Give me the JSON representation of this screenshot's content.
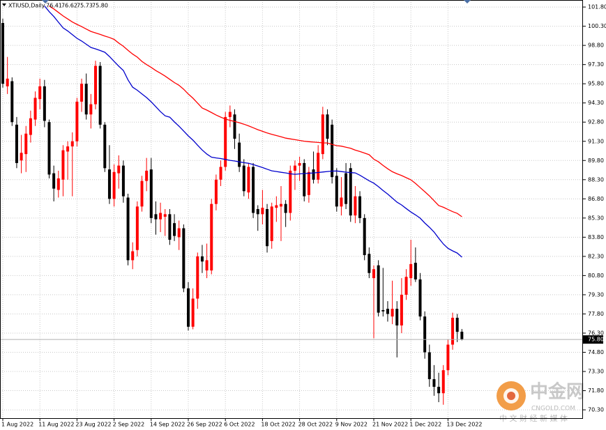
{
  "chart_data": {
    "type": "candlestick",
    "header": {
      "symbol": "XTIUSD,Daily",
      "ohlc": [
        "76.41",
        "76.62",
        "75.73",
        "75.80"
      ]
    },
    "categories": [
      "1 Aug 2022",
      null,
      null,
      null,
      null,
      null,
      null,
      null,
      "11 Aug 2022",
      null,
      null,
      null,
      null,
      null,
      null,
      null,
      "23 Aug 2022",
      null,
      null,
      null,
      null,
      null,
      null,
      null,
      "2 Sep 2022",
      null,
      null,
      null,
      null,
      null,
      null,
      null,
      "14 Sep 2022",
      null,
      null,
      null,
      null,
      null,
      null,
      null,
      "26 Sep 2022",
      null,
      null,
      null,
      null,
      null,
      null,
      null,
      "6 Oct 2022",
      null,
      null,
      null,
      null,
      null,
      null,
      null,
      "18 Oct 2022",
      null,
      null,
      null,
      null,
      null,
      null,
      null,
      "28 Oct 2022",
      null,
      null,
      null,
      null,
      null,
      null,
      null,
      "9 Nov 2022",
      null,
      null,
      null,
      null,
      null,
      null,
      null,
      "21 Nov 2022",
      null,
      null,
      null,
      null,
      null,
      null,
      null,
      "1 Dec 2022",
      null,
      null,
      null,
      null,
      null,
      null,
      null,
      "13 Dec 2022",
      null,
      null,
      null
    ],
    "open": [
      100.55,
      95.6,
      96.0,
      92.6,
      89.8,
      90.3,
      91.8,
      93.0,
      94.6,
      95.6,
      92.8,
      88.8,
      87.5,
      88.3,
      90.5,
      90.9,
      91.3,
      94.4,
      95.8,
      93.4,
      94.2,
      97.2,
      92.6,
      89.1,
      86.8,
      88.8,
      89.4,
      86.9,
      82.0,
      82.8,
      86.2,
      88.2,
      89.1,
      85.6,
      85.2,
      85.4,
      85.6,
      84.9,
      83.8,
      84.5,
      79.8,
      76.8,
      79.0,
      82.3,
      81.2,
      81.2,
      86.4,
      88.3,
      89.3,
      93.2,
      93.4,
      91.2,
      89.4,
      87.3,
      89.3,
      86.0,
      85.6,
      86.0,
      83.5,
      86.1,
      86.2,
      86.4,
      85.7,
      89.0,
      89.4,
      89.6,
      87.1,
      89.1,
      88.3,
      90.3,
      93.4,
      92.6,
      88.6,
      86.2,
      88.8,
      89.2,
      85.5,
      87.0,
      85.3,
      82.5,
      80.6,
      81.6,
      78.1,
      78.2,
      77.6,
      78.2,
      76.9,
      79.3,
      80.6,
      81.8,
      80.5,
      77.6,
      74.8,
      72.7,
      72.1,
      71.6,
      73.4,
      75.4,
      77.5,
      76.41
    ],
    "high": [
      100.9,
      97.9,
      96.3,
      93.2,
      91.8,
      92.5,
      93.7,
      95.2,
      96.2,
      96.1,
      93.0,
      89.4,
      89.0,
      91.0,
      91.3,
      92.0,
      94.7,
      96.2,
      96.6,
      95.0,
      97.6,
      97.5,
      92.8,
      91.0,
      89.5,
      90.2,
      89.8,
      87.2,
      83.4,
      86.6,
      88.6,
      90.0,
      90.0,
      86.6,
      86.5,
      86.0,
      86.0,
      85.6,
      85.1,
      84.8,
      80.3,
      79.8,
      82.6,
      83.2,
      83.3,
      86.8,
      88.7,
      89.8,
      93.6,
      94.1,
      93.8,
      91.9,
      89.9,
      89.6,
      89.6,
      86.3,
      87.5,
      86.4,
      86.5,
      87.0,
      87.8,
      86.7,
      89.4,
      89.8,
      90.1,
      89.9,
      89.3,
      90.5,
      91.0,
      94.0,
      93.8,
      93.0,
      89.2,
      88.5,
      89.6,
      89.6,
      87.8,
      87.4,
      85.6,
      83.0,
      81.6,
      82.0,
      81.4,
      78.8,
      80.4,
      78.8,
      80.6,
      81.3,
      83.6,
      83.0,
      81.0,
      78.0,
      75.4,
      73.8,
      73.2,
      73.8,
      75.8,
      77.9,
      77.8,
      76.62
    ],
    "low": [
      95.5,
      95.0,
      92.5,
      89.2,
      88.8,
      88.9,
      91.2,
      92.5,
      93.8,
      92.4,
      88.4,
      86.6,
      86.9,
      87.0,
      88.3,
      87.0,
      90.9,
      93.6,
      93.0,
      92.3,
      93.8,
      92.3,
      88.9,
      86.4,
      86.2,
      87.6,
      86.5,
      81.6,
      81.3,
      82.3,
      85.8,
      87.4,
      84.9,
      84.0,
      84.2,
      83.9,
      83.2,
      83.5,
      82.8,
      79.5,
      76.5,
      76.6,
      78.2,
      81.0,
      80.6,
      80.9,
      85.9,
      87.8,
      89.0,
      92.4,
      90.7,
      88.9,
      87.0,
      86.8,
      85.3,
      84.3,
      84.8,
      82.6,
      82.9,
      85.0,
      83.5,
      84.6,
      85.1,
      87.5,
      88.2,
      86.6,
      86.5,
      88.0,
      88.0,
      89.9,
      91.0,
      88.0,
      85.8,
      85.5,
      86.0,
      85.0,
      84.9,
      84.9,
      82.0,
      80.6,
      75.9,
      77.6,
      77.6,
      77.2,
      77.0,
      74.4,
      76.3,
      78.9,
      80.0,
      80.3,
      77.3,
      74.3,
      72.1,
      71.4,
      70.9,
      70.7,
      73.0,
      75.0,
      75.6,
      75.73
    ],
    "close": [
      95.8,
      96.2,
      92.8,
      89.6,
      90.4,
      91.9,
      93.1,
      94.7,
      95.6,
      92.9,
      88.7,
      87.6,
      88.4,
      90.6,
      90.9,
      91.3,
      94.4,
      95.8,
      93.4,
      94.2,
      97.2,
      92.6,
      89.2,
      86.8,
      88.9,
      89.4,
      87.0,
      82.0,
      82.7,
      86.2,
      88.2,
      89.0,
      85.3,
      85.2,
      85.7,
      85.6,
      83.6,
      83.9,
      84.5,
      79.8,
      76.8,
      79.0,
      82.3,
      81.9,
      82.0,
      86.4,
      88.3,
      89.3,
      93.2,
      93.6,
      91.5,
      89.3,
      87.4,
      89.3,
      85.7,
      85.6,
      86.1,
      83.1,
      86.2,
      86.3,
      86.4,
      85.7,
      89.0,
      89.4,
      89.6,
      87.0,
      88.9,
      88.3,
      90.4,
      93.4,
      91.5,
      88.5,
      86.2,
      86.9,
      86.4,
      85.5,
      87.0,
      85.3,
      82.4,
      81.0,
      81.3,
      77.9,
      78.0,
      77.8,
      78.2,
      76.9,
      79.3,
      80.7,
      81.7,
      80.5,
      77.6,
      74.8,
      72.7,
      72.1,
      71.6,
      73.4,
      75.4,
      77.5,
      76.4,
      75.8
    ],
    "bull_color": "#ff0000",
    "bear_color": "#000000",
    "moving_averages": [
      {
        "color": "#ff0000",
        "values": [
          null,
          null,
          null,
          null,
          null,
          null,
          null,
          null,
          null,
          null,
          101.88,
          101.65,
          101.38,
          101.1,
          100.87,
          100.63,
          100.44,
          100.27,
          100.08,
          99.89,
          99.78,
          99.66,
          99.53,
          99.42,
          99.27,
          98.98,
          98.73,
          98.41,
          98.12,
          97.88,
          97.55,
          97.3,
          97.08,
          96.83,
          96.62,
          96.4,
          96.15,
          95.89,
          95.68,
          95.37,
          95.0,
          94.67,
          94.29,
          93.9,
          93.74,
          93.55,
          93.35,
          93.19,
          93.04,
          92.94,
          92.85,
          92.75,
          92.64,
          92.51,
          92.36,
          92.21,
          92.08,
          91.95,
          91.84,
          91.75,
          91.65,
          91.55,
          91.49,
          91.43,
          91.37,
          91.31,
          91.27,
          91.24,
          91.21,
          91.18,
          91.17,
          91.05,
          90.96,
          90.92,
          90.84,
          90.75,
          90.61,
          90.5,
          90.38,
          90.25,
          89.9,
          89.7,
          89.41,
          89.15,
          88.92,
          88.76,
          88.62,
          88.45,
          88.29,
          88.0,
          87.68,
          87.36,
          87.03,
          86.65,
          86.27,
          86.14,
          85.97,
          85.8,
          85.66,
          85.4
        ]
      },
      {
        "color": "#0000cc",
        "values": [
          null,
          null,
          null,
          null,
          null,
          null,
          null,
          null,
          null,
          101.88,
          101.44,
          101.06,
          100.61,
          100.17,
          99.93,
          99.64,
          99.35,
          99.14,
          98.89,
          98.64,
          98.53,
          98.4,
          98.26,
          97.93,
          97.55,
          97.17,
          96.84,
          96.1,
          95.53,
          95.29,
          95.01,
          94.72,
          94.39,
          94.0,
          93.62,
          93.29,
          93.19,
          92.81,
          92.48,
          92.1,
          91.72,
          91.39,
          91.0,
          90.62,
          90.3,
          90.06,
          90.0,
          89.95,
          89.88,
          89.81,
          89.76,
          89.69,
          89.63,
          89.58,
          89.48,
          89.36,
          89.25,
          89.12,
          88.99,
          88.94,
          88.88,
          88.83,
          88.76,
          88.72,
          88.75,
          88.78,
          88.8,
          88.83,
          88.86,
          88.9,
          88.94,
          88.97,
          88.98,
          88.93,
          88.89,
          88.85,
          88.83,
          88.65,
          88.43,
          88.21,
          88.03,
          87.76,
          87.45,
          87.17,
          86.86,
          86.54,
          86.32,
          86.04,
          85.77,
          85.54,
          85.29,
          84.91,
          84.58,
          84.2,
          83.72,
          83.27,
          82.93,
          82.73,
          82.56,
          82.24
        ]
      }
    ],
    "last_price": {
      "value": 75.8,
      "label": "75.80"
    },
    "ylim": [
      69.65,
      102.35
    ],
    "yticks": [
      {
        "value": 70.3,
        "label": "70.30"
      },
      {
        "value": 71.8,
        "label": "71.80"
      },
      {
        "value": 73.3,
        "label": "73.30"
      },
      {
        "value": 74.8,
        "label": "74.80"
      },
      {
        "value": 76.3,
        "label": "76.30"
      },
      {
        "value": 77.8,
        "label": "77.80"
      },
      {
        "value": 79.3,
        "label": "79.30"
      },
      {
        "value": 80.8,
        "label": "80.80"
      },
      {
        "value": 82.3,
        "label": "82.30"
      },
      {
        "value": 83.8,
        "label": "83.80"
      },
      {
        "value": 85.3,
        "label": "85.30"
      },
      {
        "value": 86.8,
        "label": "86.80"
      },
      {
        "value": 88.3,
        "label": "88.30"
      },
      {
        "value": 89.8,
        "label": "89.80"
      },
      {
        "value": 91.3,
        "label": "91.30"
      },
      {
        "value": 92.8,
        "label": "92.80"
      },
      {
        "value": 94.3,
        "label": "94.30"
      },
      {
        "value": 95.8,
        "label": "95.80"
      },
      {
        "value": 97.3,
        "label": "97.30"
      },
      {
        "value": 98.8,
        "label": "98.80"
      },
      {
        "value": 100.3,
        "label": "100.30"
      },
      {
        "value": 101.8,
        "label": "101.80"
      }
    ],
    "grid": true,
    "watermark": {
      "brand": "中金网",
      "site": "CNGOLD.COM",
      "slogan": "中 文 财 经 新 媒 体"
    }
  }
}
